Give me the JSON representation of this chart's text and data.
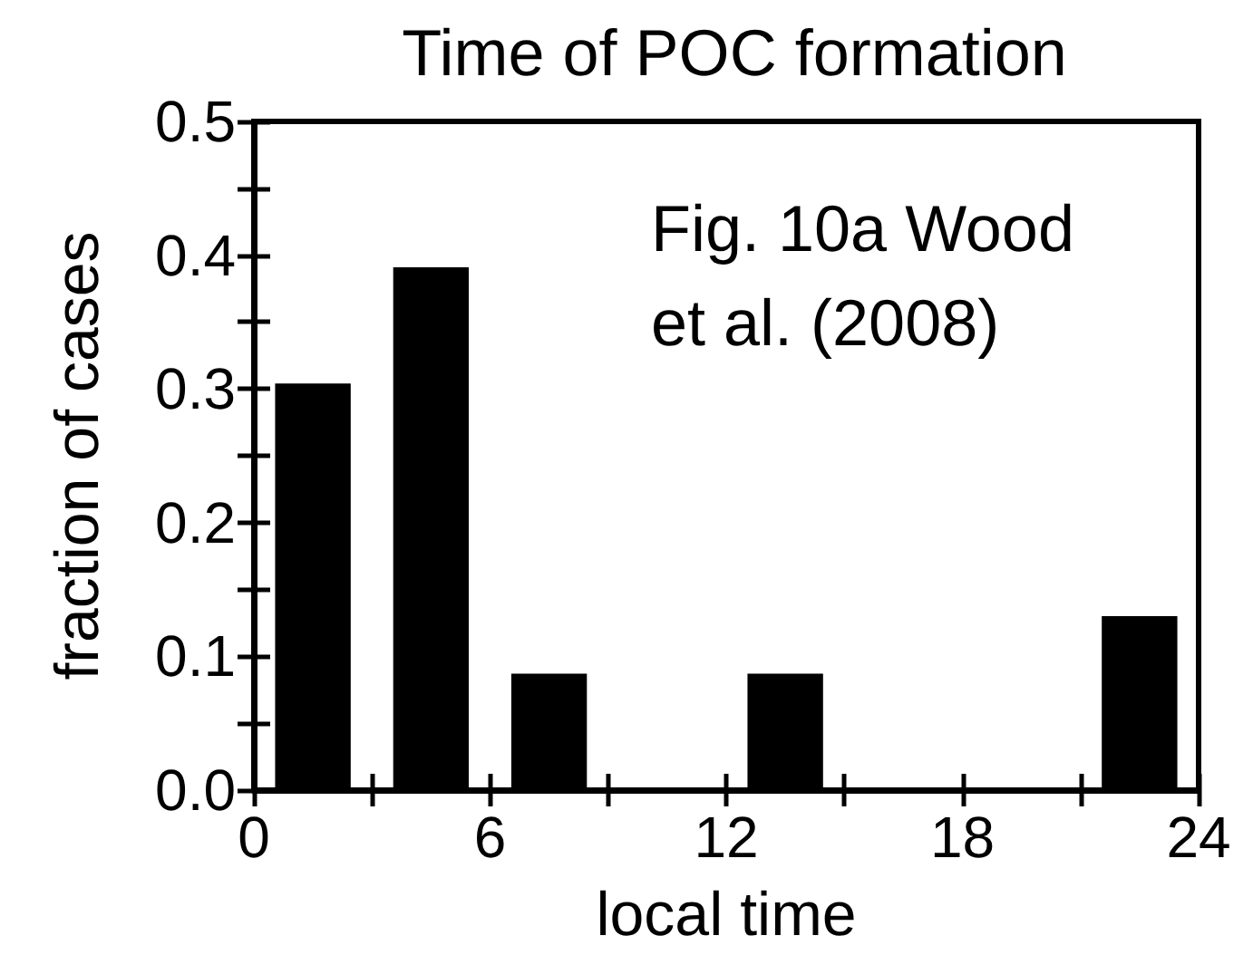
{
  "chart_data": {
    "type": "histogram",
    "title": "Time of POC formation",
    "xlabel": "local time",
    "ylabel": "fraction of cases",
    "bins": [
      0,
      3,
      6,
      9,
      12,
      15,
      18,
      21,
      24
    ],
    "values": [
      0.304,
      0.391,
      0.087,
      0,
      0.087,
      0,
      0,
      0.13
    ],
    "color": "#000000",
    "xlim": [
      0,
      24
    ],
    "xticks": [
      0,
      {
        "value": 3,
        "label": null
      },
      6,
      {
        "value": 9,
        "label": null
      },
      12,
      {
        "value": 15,
        "label": null
      },
      18,
      {
        "value": 21,
        "label": null
      },
      24
    ],
    "ylim": [
      0,
      0.5
    ],
    "yticks": [
      {
        "value": 0,
        "label": "0.0"
      },
      {
        "value": 0.05,
        "label": null
      },
      0.1,
      {
        "value": 0.15,
        "label": null
      },
      0.2,
      {
        "value": 0.25,
        "label": null
      },
      0.3,
      {
        "value": 0.35,
        "label": null
      },
      0.4,
      {
        "value": 0.45,
        "label": null
      },
      0.5
    ],
    "annotations": [
      "Fig. 10a Wood et al. (2008)"
    ],
    "grid": false
  }
}
